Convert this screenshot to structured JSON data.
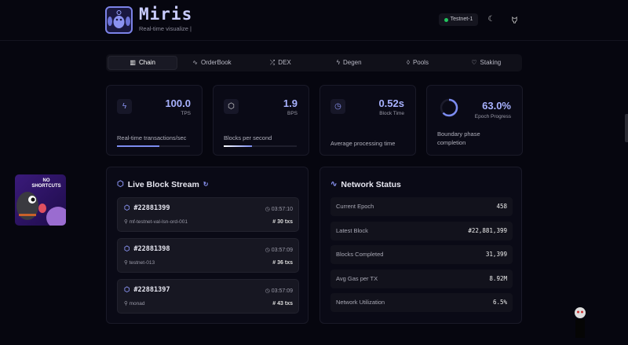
{
  "header": {
    "title": "Miris",
    "subtitle": "Real-time visualize |",
    "network": "Testnet-1",
    "theme_icon": "moon-icon",
    "github_icon": "github-icon"
  },
  "tabs": [
    {
      "label": "Chain",
      "icon": "bar-chart-icon",
      "active": true
    },
    {
      "label": "OrderBook",
      "icon": "activity-icon"
    },
    {
      "label": "DEX",
      "icon": "shuffle-icon"
    },
    {
      "label": "Degen",
      "icon": "zap-icon"
    },
    {
      "label": "Pools",
      "icon": "droplets-icon"
    },
    {
      "label": "Staking",
      "icon": "heart-icon"
    }
  ],
  "stats": [
    {
      "value": "100.0",
      "label": "TPS",
      "desc": "Real-time transactions/sec",
      "progress": 0.58,
      "icon": "zap-icon"
    },
    {
      "value": "1.9",
      "label": "BPS",
      "desc": "Blocks per second",
      "progress": 0.39,
      "icon": "box-icon"
    },
    {
      "value": "0.52s",
      "label": "Block Time",
      "desc": "Average processing time",
      "icon": "clock-icon"
    },
    {
      "value": "63.0%",
      "label": "Epoch Progress",
      "desc": "Boundary phase completion",
      "progress": 0.63
    }
  ],
  "stream": {
    "title": "Live Block Stream",
    "blocks": [
      {
        "number": "#22881399",
        "time": "03:57:10",
        "validator": "mf-testnet-val-lsn-ord-001",
        "txs": "30 txs"
      },
      {
        "number": "#22881398",
        "time": "03:57:09",
        "validator": "testnet-013",
        "txs": "36 txs"
      },
      {
        "number": "#22881397",
        "time": "03:57:09",
        "validator": "monad",
        "txs": "43 txs"
      }
    ]
  },
  "status": {
    "title": "Network Status",
    "rows": [
      {
        "label": "Current Epoch",
        "value": "458"
      },
      {
        "label": "Latest Block",
        "value": "#22,881,399"
      },
      {
        "label": "Blocks Completed",
        "value": "31,399"
      },
      {
        "label": "Avg Gas per TX",
        "value": "8.92M"
      },
      {
        "label": "Network Utilization",
        "value": "6.5%"
      }
    ]
  },
  "mascot": {
    "text": "NO SHORTCUTS"
  },
  "colors": {
    "accent": "#7c8cf0",
    "bg": "#06060f",
    "online": "#22c55e"
  }
}
